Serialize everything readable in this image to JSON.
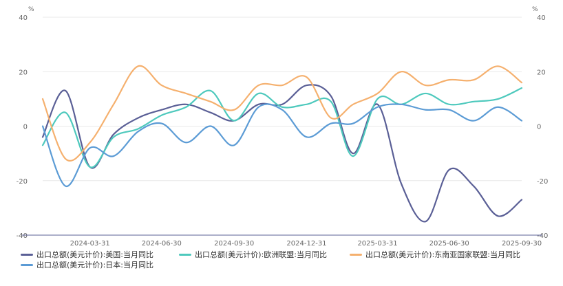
{
  "chart_data": {
    "type": "line",
    "left_unit": "%",
    "right_unit": "%",
    "ylim": [
      -40,
      40
    ],
    "yticks": [
      40,
      20,
      0,
      -20,
      -40
    ],
    "x_start": "2024-01-31",
    "x_end": "2025-09-30",
    "xticks": [
      "2024-03-31",
      "2024-06-30",
      "2024-09-30",
      "2024-12-31",
      "2025-03-31",
      "2025-06-30",
      "2025-09-30"
    ],
    "grid": true,
    "legend_position": "bottom",
    "series": [
      {
        "name": "出口总额(美元计价):美国:当月同比",
        "color": "#5a5f96",
        "points": [
          [
            "2024-01-31",
            -4
          ],
          [
            "2024-02-29",
            13
          ],
          [
            "2024-03-31",
            -15
          ],
          [
            "2024-04-30",
            -3
          ],
          [
            "2024-05-31",
            3
          ],
          [
            "2024-06-30",
            6
          ],
          [
            "2024-07-31",
            8
          ],
          [
            "2024-08-31",
            5
          ],
          [
            "2024-09-30",
            2
          ],
          [
            "2024-10-31",
            8
          ],
          [
            "2024-11-30",
            8
          ],
          [
            "2024-12-31",
            15
          ],
          [
            "2025-01-31",
            11
          ],
          [
            "2025-02-28",
            -10
          ],
          [
            "2025-03-31",
            8
          ],
          [
            "2025-04-30",
            -21
          ],
          [
            "2025-05-31",
            -35
          ],
          [
            "2025-06-30",
            -16
          ],
          [
            "2025-07-31",
            -22
          ],
          [
            "2025-08-31",
            -33
          ],
          [
            "2025-09-30",
            -27
          ]
        ]
      },
      {
        "name": "出口总额(美元计价):欧洲联盟:当月同比",
        "color": "#4ec9bd",
        "points": [
          [
            "2024-01-31",
            -7
          ],
          [
            "2024-02-29",
            5
          ],
          [
            "2024-03-31",
            -15
          ],
          [
            "2024-04-30",
            -4
          ],
          [
            "2024-05-31",
            -1
          ],
          [
            "2024-06-30",
            4
          ],
          [
            "2024-07-31",
            7
          ],
          [
            "2024-08-31",
            13
          ],
          [
            "2024-09-30",
            2
          ],
          [
            "2024-10-31",
            12
          ],
          [
            "2024-11-30",
            7
          ],
          [
            "2024-12-31",
            8
          ],
          [
            "2025-01-31",
            9
          ],
          [
            "2025-02-28",
            -11
          ],
          [
            "2025-03-31",
            10
          ],
          [
            "2025-04-30",
            8
          ],
          [
            "2025-05-31",
            12
          ],
          [
            "2025-06-30",
            8
          ],
          [
            "2025-07-31",
            9
          ],
          [
            "2025-08-31",
            10
          ],
          [
            "2025-09-30",
            14
          ]
        ]
      },
      {
        "name": "出口总额(美元计价):东南亚国家联盟:当月同比",
        "color": "#f5b06e",
        "points": [
          [
            "2024-01-31",
            10
          ],
          [
            "2024-02-29",
            -12
          ],
          [
            "2024-03-31",
            -6
          ],
          [
            "2024-04-30",
            8
          ],
          [
            "2024-05-31",
            22
          ],
          [
            "2024-06-30",
            15
          ],
          [
            "2024-07-31",
            12
          ],
          [
            "2024-08-31",
            9
          ],
          [
            "2024-09-30",
            6
          ],
          [
            "2024-10-31",
            15
          ],
          [
            "2024-11-30",
            15
          ],
          [
            "2024-12-31",
            18
          ],
          [
            "2025-01-31",
            3
          ],
          [
            "2025-02-28",
            8
          ],
          [
            "2025-03-31",
            12
          ],
          [
            "2025-04-30",
            20
          ],
          [
            "2025-05-31",
            15
          ],
          [
            "2025-06-30",
            17
          ],
          [
            "2025-07-31",
            17
          ],
          [
            "2025-08-31",
            22
          ],
          [
            "2025-09-30",
            16
          ]
        ]
      },
      {
        "name": "出口总额(美元计价):日本:当月同比",
        "color": "#5b9bd5",
        "points": [
          [
            "2024-01-31",
            0
          ],
          [
            "2024-02-29",
            -22
          ],
          [
            "2024-03-31",
            -8
          ],
          [
            "2024-04-30",
            -11
          ],
          [
            "2024-05-31",
            -2
          ],
          [
            "2024-06-30",
            1
          ],
          [
            "2024-07-31",
            -6
          ],
          [
            "2024-08-31",
            0
          ],
          [
            "2024-09-30",
            -7
          ],
          [
            "2024-10-31",
            7
          ],
          [
            "2024-11-30",
            6
          ],
          [
            "2024-12-31",
            -4
          ],
          [
            "2025-01-31",
            1
          ],
          [
            "2025-02-28",
            1
          ],
          [
            "2025-03-31",
            7
          ],
          [
            "2025-04-30",
            8
          ],
          [
            "2025-05-31",
            6
          ],
          [
            "2025-06-30",
            6
          ],
          [
            "2025-07-31",
            2
          ],
          [
            "2025-08-31",
            7
          ],
          [
            "2025-09-30",
            2
          ]
        ]
      }
    ]
  }
}
